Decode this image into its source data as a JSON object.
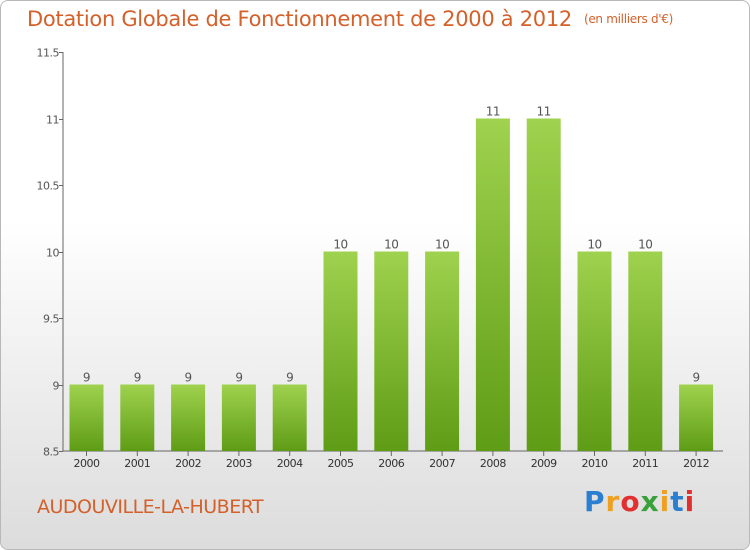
{
  "header": {
    "title": "Dotation Globale de Fonctionnement de 2000 à 2012",
    "units": "(en milliers d'€)"
  },
  "footer": {
    "commune": "AUDOUVILLE-LA-HUBERT",
    "brand": "Proxiti",
    "brand_letters": [
      "P",
      "r",
      "o",
      "x",
      "i",
      "t",
      "i"
    ],
    "brand_colors": [
      "#2a7fd0",
      "#f0a020",
      "#e23030",
      "#3aa03a",
      "#f0a020",
      "#2a7fd0",
      "#e23030"
    ]
  },
  "chart_data": {
    "type": "bar",
    "categories": [
      "2000",
      "2001",
      "2002",
      "2003",
      "2004",
      "2005",
      "2006",
      "2007",
      "2008",
      "2009",
      "2010",
      "2011",
      "2012"
    ],
    "values": [
      9,
      9,
      9,
      9,
      9,
      10,
      10,
      10,
      11,
      11,
      10,
      10,
      9
    ],
    "data_labels": [
      "9",
      "9",
      "9",
      "9",
      "9",
      "10",
      "10",
      "10",
      "11",
      "11",
      "10",
      "10",
      "9"
    ],
    "ylim": [
      8.5,
      11.5
    ],
    "yticks": [
      8.5,
      9,
      9.5,
      10,
      10.5,
      11,
      11.5
    ],
    "ytick_labels": [
      "8.5",
      "9",
      "9.5",
      "10",
      "10.5",
      "11",
      "11.5"
    ],
    "xlabel": "",
    "ylabel": "",
    "grid": false,
    "bar_color_top": "#9fd24e",
    "bar_color_bottom": "#5f9c16"
  }
}
